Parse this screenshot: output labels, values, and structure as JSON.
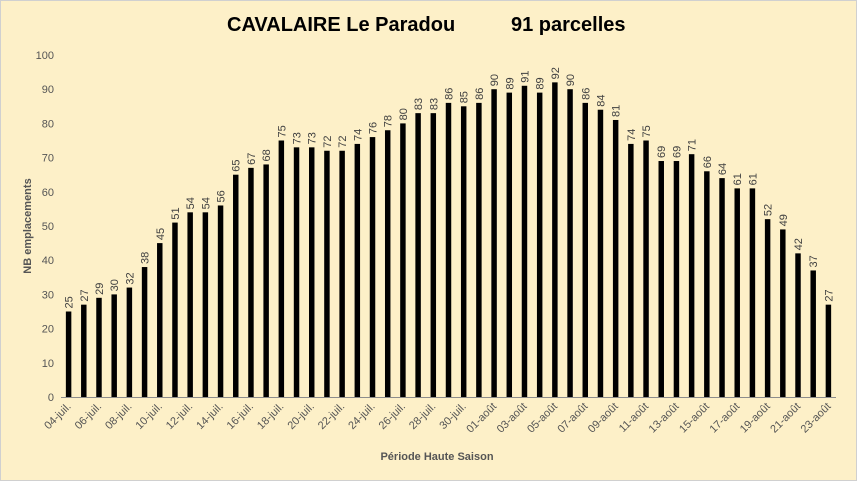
{
  "chart_data": {
    "type": "bar",
    "title_left": "CAVALAIRE Le Paradou",
    "title_right": "91 parcelles",
    "xlabel": "Période Haute Saison",
    "ylabel": "NB emplacements",
    "ylim": [
      0,
      100
    ],
    "yticks": [
      0,
      10,
      20,
      30,
      40,
      50,
      60,
      70,
      80,
      90,
      100
    ],
    "grid": false,
    "legend": "none",
    "bar_color": "#000000",
    "background": "#fdf0c8",
    "categories": [
      "04-juil.",
      "05-juil.",
      "06-juil.",
      "07-juil.",
      "08-juil.",
      "09-juil.",
      "10-juil.",
      "11-juil.",
      "12-juil.",
      "13-juil.",
      "14-juil.",
      "15-juil.",
      "16-juil.",
      "17-juil.",
      "18-juil.",
      "19-juil.",
      "20-juil.",
      "21-juil.",
      "22-juil.",
      "23-juil.",
      "24-juil.",
      "25-juil.",
      "26-juil.",
      "27-juil.",
      "28-juil.",
      "29-juil.",
      "30-juil.",
      "31-juil.",
      "01-août",
      "02-août",
      "03-août",
      "04-août",
      "05-août",
      "06-août",
      "07-août",
      "08-août",
      "09-août",
      "10-août",
      "11-août",
      "12-août",
      "13-août",
      "14-août",
      "15-août",
      "16-août",
      "17-août",
      "18-août",
      "19-août",
      "20-août",
      "21-août",
      "22-août",
      "23-août"
    ],
    "tick_labels_shown": [
      "04-juil.",
      "06-juil.",
      "08-juil.",
      "10-juil.",
      "12-juil.",
      "14-juil.",
      "16-juil.",
      "18-juil.",
      "20-juil.",
      "22-juil.",
      "24-juil.",
      "26-juil.",
      "28-juil.",
      "30-juil.",
      "01-août",
      "03-août",
      "05-août",
      "07-août",
      "09-août",
      "11-août",
      "13-août",
      "15-août",
      "17-août",
      "19-août",
      "21-août",
      "23-août"
    ],
    "values": [
      25,
      27,
      29,
      30,
      32,
      38,
      45,
      51,
      54,
      54,
      56,
      65,
      67,
      68,
      75,
      73,
      73,
      72,
      72,
      74,
      76,
      78,
      80,
      83,
      83,
      86,
      85,
      86,
      90,
      89,
      91,
      89,
      92,
      90,
      86,
      84,
      81,
      74,
      75,
      69,
      69,
      71,
      66,
      64,
      61,
      61,
      52,
      49,
      42,
      37,
      27
    ]
  }
}
